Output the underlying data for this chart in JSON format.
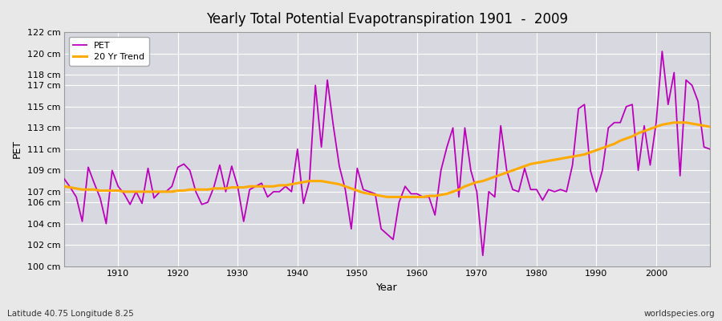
{
  "title": "Yearly Total Potential Evapotranspiration 1901  -  2009",
  "xlabel": "Year",
  "ylabel": "PET",
  "subtitle_left": "Latitude 40.75 Longitude 8.25",
  "subtitle_right": "worldspecies.org",
  "pet_color": "#bb00bb",
  "trend_color": "#ffaa00",
  "fig_bg_color": "#e8e8e8",
  "plot_bg_color": "#d8d8e0",
  "ylim": [
    100,
    122
  ],
  "ytick_vals": [
    100,
    102,
    104,
    106,
    107,
    109,
    111,
    113,
    115,
    117,
    118,
    120,
    122
  ],
  "ytick_labs": [
    "100 cm",
    "102 cm",
    "104 cm",
    "106 cm",
    "107 cm",
    "109 cm",
    "111 cm",
    "113 cm",
    "115 cm",
    "117 cm",
    "118 cm",
    "120 cm",
    "122 cm"
  ],
  "xtick_vals": [
    1910,
    1920,
    1930,
    1940,
    1950,
    1960,
    1970,
    1980,
    1990,
    2000
  ],
  "xlim": [
    1901,
    2009
  ],
  "years": [
    1901,
    1902,
    1903,
    1904,
    1905,
    1906,
    1907,
    1908,
    1909,
    1910,
    1911,
    1912,
    1913,
    1914,
    1915,
    1916,
    1917,
    1918,
    1919,
    1920,
    1921,
    1922,
    1923,
    1924,
    1925,
    1926,
    1927,
    1928,
    1929,
    1930,
    1931,
    1932,
    1933,
    1934,
    1935,
    1936,
    1937,
    1938,
    1939,
    1940,
    1941,
    1942,
    1943,
    1944,
    1945,
    1946,
    1947,
    1948,
    1949,
    1950,
    1951,
    1952,
    1953,
    1954,
    1955,
    1956,
    1957,
    1958,
    1959,
    1960,
    1961,
    1962,
    1963,
    1964,
    1965,
    1966,
    1967,
    1968,
    1969,
    1970,
    1971,
    1972,
    1973,
    1974,
    1975,
    1976,
    1977,
    1978,
    1979,
    1980,
    1981,
    1982,
    1983,
    1984,
    1985,
    1986,
    1987,
    1988,
    1989,
    1990,
    1991,
    1992,
    1993,
    1994,
    1995,
    1996,
    1997,
    1998,
    1999,
    2000,
    2001,
    2002,
    2003,
    2004,
    2005,
    2006,
    2007,
    2008,
    2009
  ],
  "pet_values": [
    108.2,
    107.4,
    106.5,
    104.2,
    109.3,
    107.8,
    106.4,
    104.0,
    109.0,
    107.5,
    106.8,
    105.8,
    107.0,
    105.9,
    109.2,
    106.4,
    107.0,
    107.0,
    107.5,
    109.3,
    109.6,
    109.0,
    107.0,
    105.8,
    106.0,
    107.4,
    109.5,
    107.0,
    109.4,
    107.5,
    104.2,
    107.2,
    107.5,
    107.8,
    106.5,
    107.0,
    107.0,
    107.5,
    107.0,
    111.0,
    105.9,
    108.0,
    117.0,
    111.2,
    117.5,
    113.2,
    109.4,
    107.2,
    103.5,
    109.2,
    107.2,
    107.0,
    106.8,
    103.5,
    103.0,
    102.5,
    106.0,
    107.5,
    106.8,
    106.8,
    106.5,
    106.5,
    104.8,
    109.0,
    111.2,
    113.0,
    106.5,
    113.0,
    109.0,
    107.0,
    101.0,
    107.0,
    106.5,
    113.2,
    109.0,
    107.2,
    107.0,
    109.2,
    107.2,
    107.2,
    106.2,
    107.2,
    107.0,
    107.2,
    107.0,
    109.5,
    114.8,
    115.2,
    109.0,
    107.0,
    109.0,
    113.0,
    113.5,
    113.5,
    115.0,
    115.2,
    109.0,
    113.2,
    109.5,
    113.5,
    120.2,
    115.2,
    118.2,
    108.5,
    117.5,
    117.0,
    115.5,
    111.2,
    111.0
  ],
  "trend_values": [
    107.5,
    107.4,
    107.3,
    107.2,
    107.2,
    107.2,
    107.1,
    107.1,
    107.1,
    107.1,
    107.0,
    107.0,
    107.0,
    107.0,
    107.0,
    107.0,
    107.0,
    107.0,
    107.0,
    107.1,
    107.1,
    107.2,
    107.2,
    107.2,
    107.2,
    107.3,
    107.3,
    107.3,
    107.4,
    107.4,
    107.4,
    107.5,
    107.5,
    107.5,
    107.5,
    107.5,
    107.6,
    107.6,
    107.7,
    107.8,
    107.9,
    108.0,
    108.0,
    108.0,
    107.9,
    107.8,
    107.7,
    107.5,
    107.3,
    107.1,
    106.9,
    106.8,
    106.7,
    106.6,
    106.5,
    106.5,
    106.5,
    106.5,
    106.5,
    106.5,
    106.5,
    106.6,
    106.6,
    106.7,
    106.8,
    107.0,
    107.2,
    107.5,
    107.7,
    107.9,
    108.0,
    108.2,
    108.4,
    108.6,
    108.8,
    109.0,
    109.2,
    109.4,
    109.6,
    109.7,
    109.8,
    109.9,
    110.0,
    110.1,
    110.2,
    110.3,
    110.4,
    110.5,
    110.7,
    110.9,
    111.1,
    111.3,
    111.5,
    111.8,
    112.0,
    112.2,
    112.5,
    112.7,
    112.9,
    113.1,
    113.3,
    113.4,
    113.5,
    113.5,
    113.5,
    113.4,
    113.3,
    113.2,
    113.1
  ]
}
